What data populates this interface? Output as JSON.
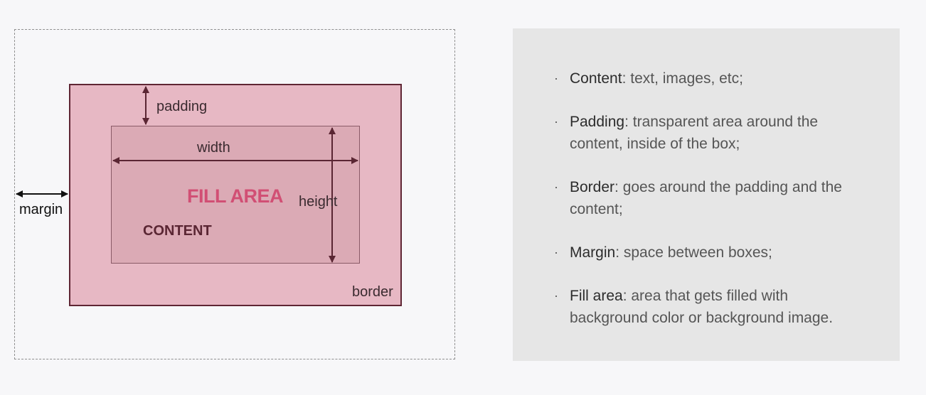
{
  "diagram": {
    "labels": {
      "padding": "padding",
      "width": "width",
      "height": "height",
      "margin": "margin",
      "border": "border",
      "fill_area": "FILL AREA",
      "content": "CONTENT"
    },
    "colors": {
      "border_box_fill": "#e7b8c4",
      "content_box_fill": "#dbaab5",
      "border_line": "#5f2634",
      "arrow": "#5a2633",
      "fill_area_text": "#d14f74"
    }
  },
  "panel": {
    "items": [
      {
        "term": "Content",
        "text": ": text, images, etc;"
      },
      {
        "term": "Padding",
        "text": ": transparent area around the content, inside of the box;"
      },
      {
        "term": "Border",
        "text": ": goes around the padding and the content;"
      },
      {
        "term": "Margin",
        "text": ": space between boxes;"
      },
      {
        "term": "Fill area",
        "text": ": area that gets filled with background color or background image."
      }
    ]
  }
}
